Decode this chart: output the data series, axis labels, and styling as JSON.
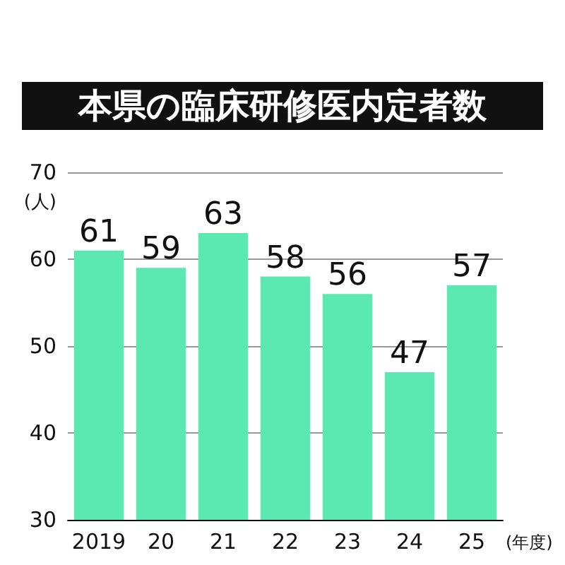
{
  "chart_data": {
    "type": "bar",
    "title": "本県の臨床研修医内定者数",
    "xlabel": "(年度)",
    "ylabel": "(人)",
    "categories": [
      "2019",
      "20",
      "21",
      "22",
      "23",
      "24",
      "25"
    ],
    "values": [
      61,
      59,
      63,
      58,
      56,
      47,
      57
    ],
    "color": "#5ce8b2",
    "ylim": [
      30,
      70
    ],
    "yticks": [
      30,
      40,
      50,
      60,
      70
    ],
    "grid": "y",
    "data_labels": true
  }
}
